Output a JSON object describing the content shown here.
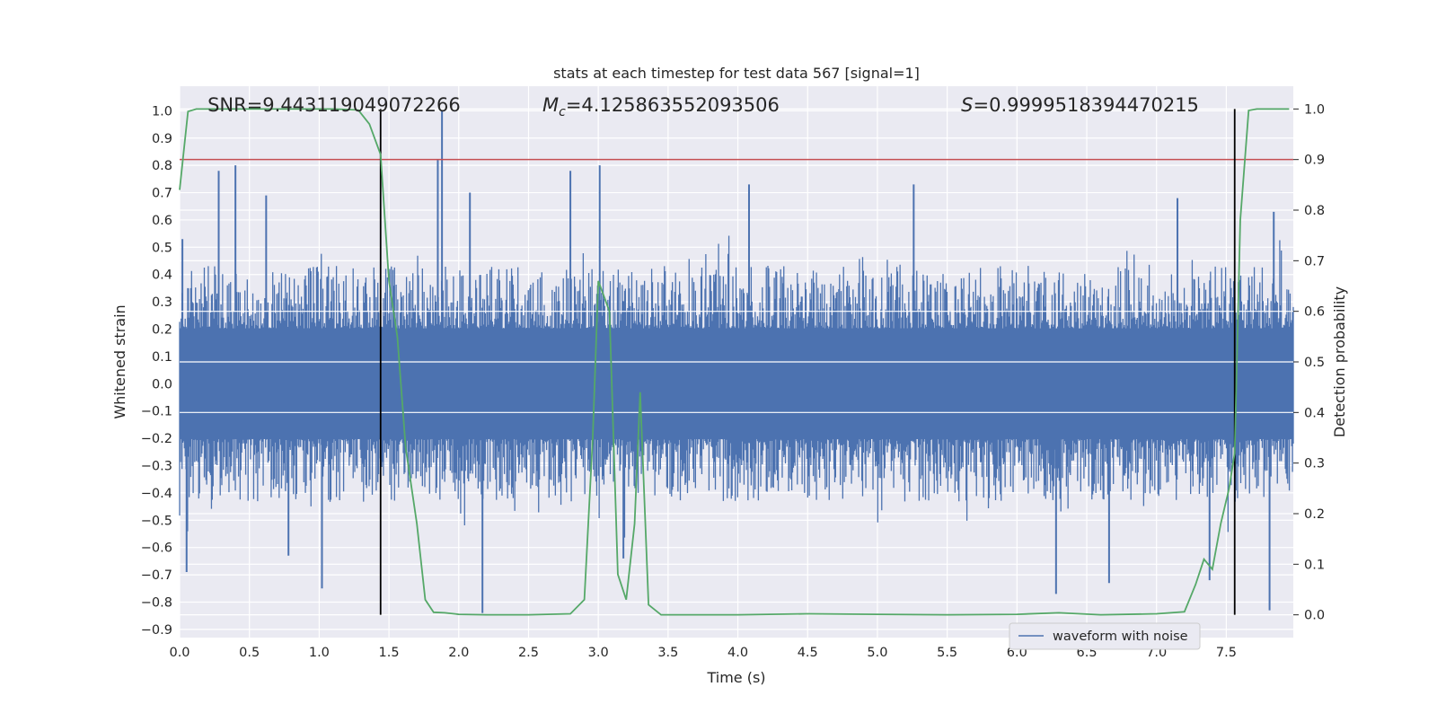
{
  "chart_data": {
    "type": "line",
    "title": "stats at each timestep for test data 567 [signal=1]",
    "xlabel": "Time (s)",
    "ylabel_left": "Whitened strain",
    "ylabel_right": "Detection probability",
    "xlim": [
      0,
      7.98
    ],
    "ylim_left": [
      -0.93,
      1.09
    ],
    "ylim_right": [
      -0.045,
      1.045
    ],
    "xticks": [
      "0.0",
      "0.5",
      "1.0",
      "1.5",
      "2.0",
      "2.5",
      "3.0",
      "3.5",
      "4.0",
      "4.5",
      "5.0",
      "5.5",
      "6.0",
      "6.5",
      "7.0",
      "7.5"
    ],
    "xtick_values": [
      0,
      0.5,
      1,
      1.5,
      2,
      2.5,
      3,
      3.5,
      4,
      4.5,
      5,
      5.5,
      6,
      6.5,
      7,
      7.5
    ],
    "yticks_left": [
      "1.0",
      "0.9",
      "0.8",
      "0.7",
      "0.6",
      "0.5",
      "0.4",
      "0.3",
      "0.2",
      "0.1",
      "0.0",
      "−0.1",
      "−0.2",
      "−0.3",
      "−0.4",
      "−0.5",
      "−0.6",
      "−0.7",
      "−0.8",
      "−0.9"
    ],
    "ytick_values_left": [
      1.0,
      0.9,
      0.8,
      0.7,
      0.6,
      0.5,
      0.4,
      0.3,
      0.2,
      0.1,
      0.0,
      -0.1,
      -0.2,
      -0.3,
      -0.4,
      -0.5,
      -0.6,
      -0.7,
      -0.8,
      -0.9
    ],
    "yticks_right": [
      "1.0",
      "0.9",
      "0.8",
      "0.7",
      "0.6",
      "0.5",
      "0.4",
      "0.3",
      "0.2",
      "0.1",
      "0.0"
    ],
    "ytick_values_right": [
      1.0,
      0.9,
      0.8,
      0.7,
      0.6,
      0.5,
      0.4,
      0.3,
      0.2,
      0.1,
      0.0
    ],
    "grid": true,
    "legend": {
      "placement": "lower-right",
      "entries": [
        {
          "label": "waveform with noise",
          "color": "#4c72b0"
        }
      ]
    },
    "annotations": [
      {
        "prefix": "SNR=",
        "value": "9.443119049072266",
        "x": 0.2
      },
      {
        "prefix": "M",
        "subscript": "c",
        "equals": "=",
        "value": "4.125863552093506",
        "x": 2.6
      },
      {
        "prefix": "S",
        "equals": "=",
        "value": "0.9999518394470215",
        "x": 5.6
      }
    ],
    "threshold_line": {
      "axis": "right",
      "value": 0.9,
      "color": "#c44e52"
    },
    "vertical_markers": [
      {
        "x": 1.44
      },
      {
        "x": 7.56
      }
    ],
    "waveform": {
      "name": "waveform with noise",
      "color": "#4c72b0",
      "t_start": 0,
      "t_end": 7.98,
      "noise_envelope": 0.27,
      "spikes_up": [
        [
          0.02,
          0.53
        ],
        [
          0.06,
          0.35
        ],
        [
          0.28,
          0.78
        ],
        [
          0.4,
          0.8
        ],
        [
          0.62,
          0.69
        ],
        [
          1.88,
          1.0
        ],
        [
          1.85,
          0.82
        ],
        [
          2.08,
          0.7
        ],
        [
          2.8,
          0.78
        ],
        [
          3.01,
          0.8
        ],
        [
          4.08,
          0.73
        ],
        [
          5.26,
          0.73
        ],
        [
          7.15,
          0.68
        ],
        [
          7.84,
          0.63
        ]
      ],
      "spikes_down": [
        [
          0.05,
          -0.69
        ],
        [
          1.02,
          -0.75
        ],
        [
          2.17,
          -0.84
        ],
        [
          6.28,
          -0.77
        ],
        [
          6.66,
          -0.73
        ],
        [
          7.38,
          -0.72
        ],
        [
          7.81,
          -0.83
        ],
        [
          0.78,
          -0.63
        ],
        [
          3.18,
          -0.64
        ]
      ]
    },
    "series": [
      {
        "name": "detection probability",
        "axis": "right",
        "color": "#55a868",
        "x": [
          0.0,
          0.06,
          0.12,
          0.2,
          0.5,
          0.8,
          1.1,
          1.28,
          1.36,
          1.44,
          1.5,
          1.56,
          1.62,
          1.7,
          1.76,
          1.82,
          1.9,
          2.0,
          2.2,
          2.5,
          2.8,
          2.9,
          2.96,
          3.0,
          3.08,
          3.14,
          3.2,
          3.26,
          3.3,
          3.36,
          3.45,
          4.0,
          4.5,
          5.0,
          5.5,
          6.0,
          6.3,
          6.6,
          7.0,
          7.2,
          7.28,
          7.34,
          7.4,
          7.46,
          7.52,
          7.56,
          7.6,
          7.66,
          7.72,
          7.8,
          7.95
        ],
        "y": [
          0.84,
          0.995,
          1.0,
          1.0,
          1.0,
          1.0,
          1.0,
          0.998,
          0.97,
          0.91,
          0.66,
          0.55,
          0.33,
          0.18,
          0.03,
          0.005,
          0.004,
          0.001,
          0.0,
          0.0,
          0.002,
          0.03,
          0.35,
          0.66,
          0.6,
          0.08,
          0.03,
          0.18,
          0.44,
          0.02,
          0.0,
          0.0,
          0.002,
          0.001,
          0.0,
          0.001,
          0.004,
          0.0,
          0.002,
          0.006,
          0.06,
          0.11,
          0.09,
          0.18,
          0.25,
          0.32,
          0.78,
          0.997,
          1.0,
          1.0,
          1.0
        ]
      }
    ]
  }
}
